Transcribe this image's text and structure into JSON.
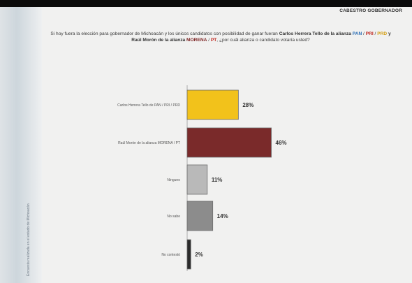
{
  "header": {
    "brand": "CABESTRO GOBERNADOR"
  },
  "question": {
    "intro": "Si hoy fuera la elección para gobernador de Michoacán y los únicos candidatos con posibilidad de ganar fueran",
    "candidate_1": "Carlos Herrera Tello de la alianza",
    "pan": "PAN",
    "pri": "PRI",
    "prd": "PRD",
    "joiner": "y",
    "candidate_2": "Raúl Morón de la alianza",
    "morena": "MORENA",
    "pt": "PT",
    "outro": ", ¿por cuál alianza o candidato votaría usted?"
  },
  "side_caption": "Encuesta realizada en el estado de Michoacán",
  "chart_data": {
    "type": "bar",
    "orientation": "horizontal",
    "categories": [
      "Carlos Herrera Tello de PAN / PRI / PRD",
      "Raúl Morón de la alianza MORENA / PT",
      "Ninguno",
      "No sabe",
      "No contestó"
    ],
    "values": [
      28,
      46,
      11,
      14,
      2
    ],
    "value_labels": [
      "28%",
      "46%",
      "11%",
      "14%",
      "2%"
    ],
    "colors": [
      "#f2c21b",
      "#7a2a2a",
      "#b9b9b9",
      "#8c8c8c",
      "#2b2b2b"
    ],
    "xlim": [
      0,
      50
    ],
    "grid": false,
    "legend": "none"
  }
}
